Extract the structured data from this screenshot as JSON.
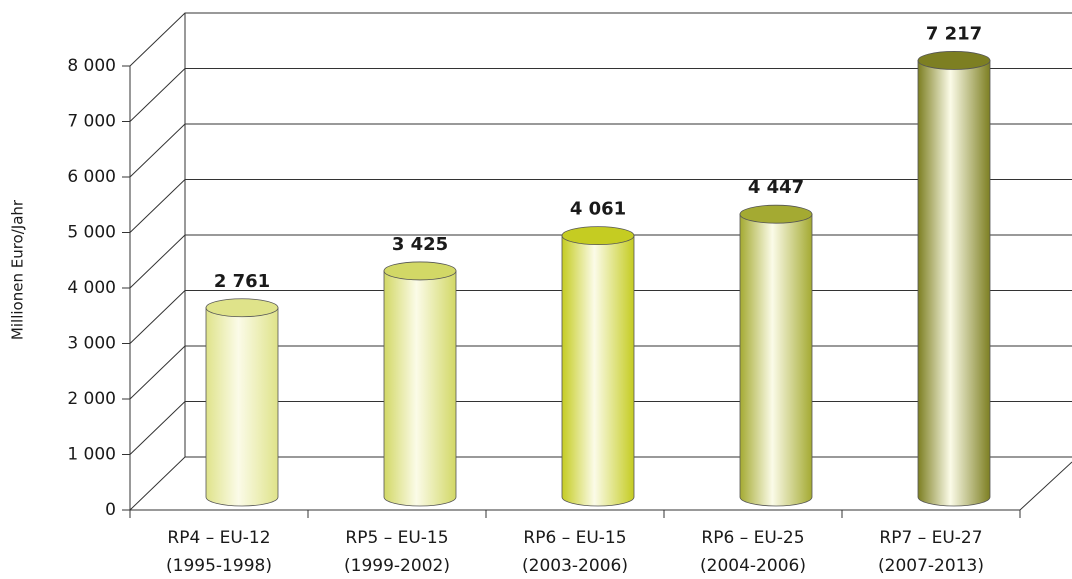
{
  "chart_data": {
    "type": "bar",
    "y_label": "Millionen Euro/Jahr",
    "categories": [
      [
        "RP4 – EU-12",
        "(1995-1998)"
      ],
      [
        "RP5 – EU-15",
        "(1999-2002)"
      ],
      [
        "RP6 – EU-15",
        "(2003-2006)"
      ],
      [
        "RP6 – EU-25",
        "(2004-2006)"
      ],
      [
        "RP7 – EU-27",
        "(2007-2013)"
      ]
    ],
    "values": [
      2761,
      3425,
      4061,
      4447,
      7217
    ],
    "value_labels": [
      "2 761",
      "3 425",
      "4 061",
      "4 447",
      "7 217"
    ],
    "colors": [
      "#dfe38a",
      "#d2d866",
      "#c5cc22",
      "#a4aa32",
      "#7d7f22"
    ],
    "ylim": [
      0,
      8000
    ],
    "yticks": [
      0,
      {
        "value": 1000,
        "label": "1 000"
      },
      {
        "value": 2000,
        "label": "2 000"
      },
      {
        "value": 3000,
        "label": "3 000"
      },
      {
        "value": 4000,
        "label": "4 000"
      },
      {
        "value": 5000,
        "label": "5 000"
      },
      {
        "value": 6000,
        "label": "6 000"
      },
      {
        "value": 7000,
        "label": "7 000"
      },
      {
        "value": 8000,
        "label": "8 000"
      }
    ],
    "grid": true
  }
}
